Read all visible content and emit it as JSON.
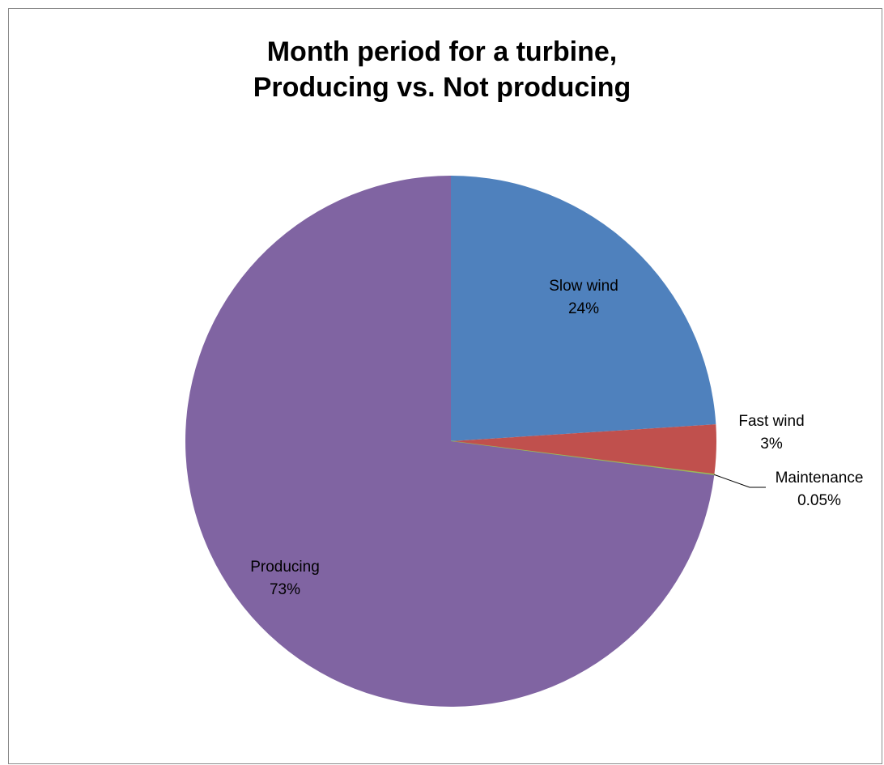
{
  "chart_data": {
    "type": "pie",
    "title": [
      "Month period for a turbine,",
      "Producing vs. Not producing"
    ],
    "slices": [
      {
        "label": "Slow wind",
        "value": 24,
        "display": "24%",
        "color": "#4f81bd"
      },
      {
        "label": "Fast wind",
        "value": 3,
        "display": "3%",
        "color": "#c0504d"
      },
      {
        "label": "Maintenance",
        "value": 0.05,
        "display": "0.05%",
        "color": "#9bbb59"
      },
      {
        "label": "Producing",
        "value": 73,
        "display": "73%",
        "color": "#8064a2"
      }
    ],
    "start_angle": "12 o'clock",
    "direction": "clockwise",
    "legend": "none"
  }
}
